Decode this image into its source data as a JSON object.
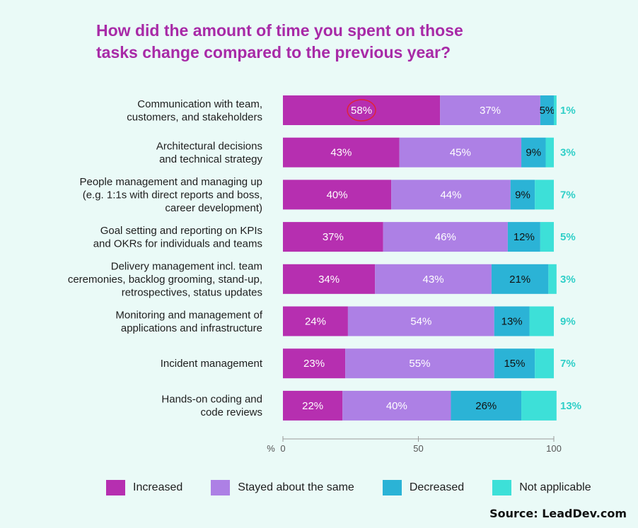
{
  "chart_data": {
    "type": "bar",
    "orientation": "horizontal",
    "stacked": true,
    "title_lines": [
      "How did the amount of time you spent on those",
      "tasks change compared to the previous year?"
    ],
    "categories": [
      [
        "Communication with team,",
        "customers, and stakeholders"
      ],
      [
        "Architectural decisions",
        "and technical strategy"
      ],
      [
        "People management and managing up",
        "(e.g. 1:1s with direct reports and boss,",
        "career development)"
      ],
      [
        "Goal setting and reporting on KPIs",
        "and OKRs for individuals and teams"
      ],
      [
        "Delivery management incl. team",
        "ceremonies, backlog grooming, stand-up,",
        "retrospectives, status updates"
      ],
      [
        "Monitoring and management of",
        "applications and infrastructure"
      ],
      [
        "Incident management"
      ],
      [
        "Hands-on coding and",
        "code reviews"
      ]
    ],
    "series": [
      {
        "name": "Increased",
        "color": "#b62fb0",
        "values": [
          58,
          43,
          40,
          37,
          34,
          24,
          23,
          22
        ],
        "labels": [
          "58%",
          "43%",
          "40%",
          "37%",
          "34%",
          "24%",
          "23%",
          "22%"
        ]
      },
      {
        "name": "Stayed about the same",
        "color": "#ad80e5",
        "values": [
          37,
          45,
          44,
          46,
          43,
          54,
          55,
          40
        ],
        "labels": [
          "37%",
          "45%",
          "44%",
          "46%",
          "43%",
          "54%",
          "55%",
          "40%"
        ]
      },
      {
        "name": "Decreased",
        "color": "#2bb3d6",
        "values": [
          5,
          9,
          9,
          12,
          21,
          13,
          15,
          26
        ],
        "labels": [
          "5%",
          "9%",
          "9%",
          "12%",
          "21%",
          "13%",
          "15%",
          "26%"
        ]
      },
      {
        "name": "Not applicable",
        "color": "#3de0d8",
        "values": [
          1,
          3,
          7,
          5,
          3,
          9,
          7,
          13
        ],
        "labels": [
          "1%",
          "3%",
          "7%",
          "5%",
          "3%",
          "9%",
          "7%",
          "13%"
        ]
      }
    ],
    "xlim": [
      0,
      100
    ],
    "xticks": [
      0,
      50,
      100
    ],
    "xtick_labels": [
      "0",
      "50",
      "100"
    ],
    "xlabel": "%",
    "highlighted_label": "58%",
    "label_text_colors": [
      "#ffffff",
      "#ffffff",
      "#111111",
      "#111111"
    ],
    "outside_label_color": "#2fcfc8",
    "legend_position": "bottom"
  },
  "source": "Source: LeadDev.com"
}
